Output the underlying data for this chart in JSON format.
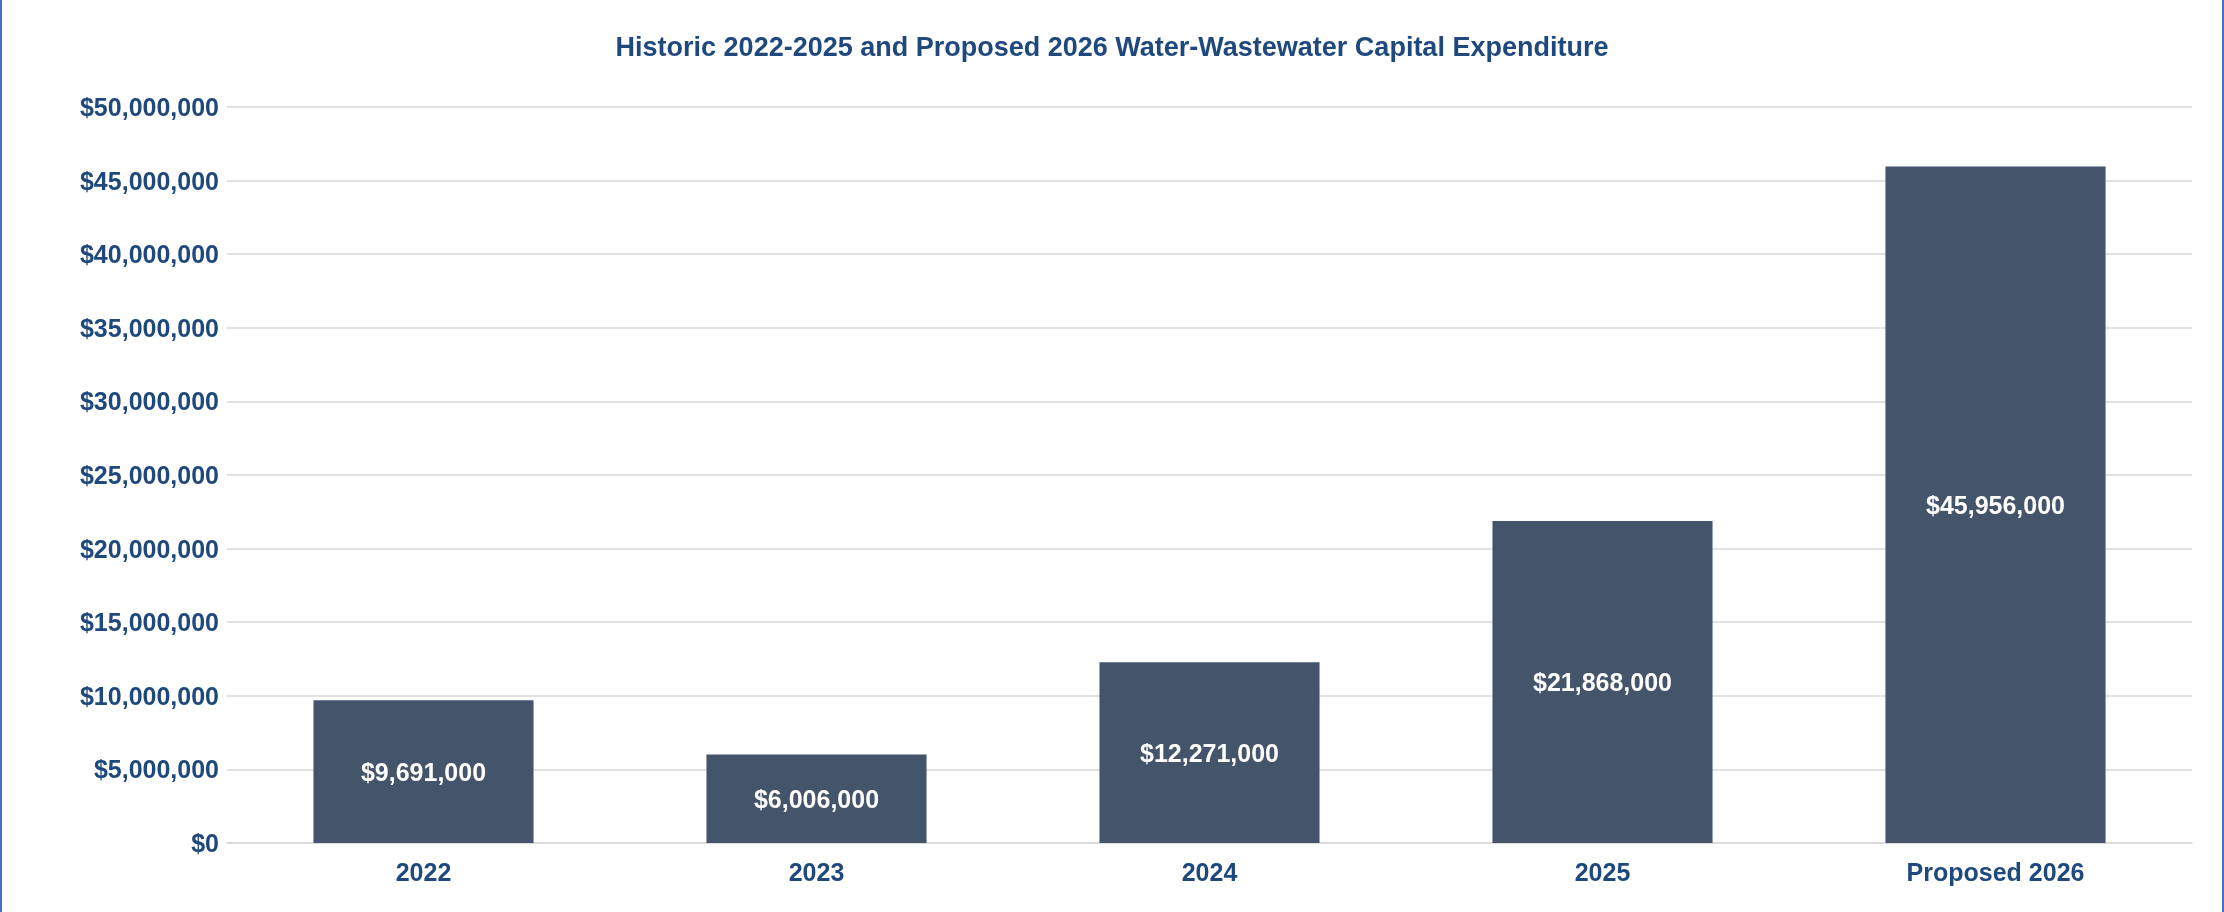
{
  "chart_data": {
    "type": "bar",
    "title": "Historic 2022-2025 and Proposed 2026 Water-Wastewater Capital Expenditure",
    "categories": [
      "2022",
      "2023",
      "2024",
      "2025",
      "Proposed 2026"
    ],
    "values": [
      9691000,
      6006000,
      12271000,
      21868000,
      45956000
    ],
    "value_labels": [
      "$9,691,000",
      "$6,006,000",
      "$12,271,000",
      "$21,868,000",
      "$45,956,000"
    ],
    "color": "#44546a",
    "ylim": [
      0,
      50000000
    ],
    "yticks": [
      {
        "value": 0,
        "label": "$0"
      },
      {
        "value": 5000000,
        "label": "$5,000,000"
      },
      {
        "value": 10000000,
        "label": "$10,000,000"
      },
      {
        "value": 15000000,
        "label": "$15,000,000"
      },
      {
        "value": 20000000,
        "label": "$20,000,000"
      },
      {
        "value": 25000000,
        "label": "$25,000,000"
      },
      {
        "value": 30000000,
        "label": "$30,000,000"
      },
      {
        "value": 35000000,
        "label": "$35,000,000"
      },
      {
        "value": 40000000,
        "label": "$40,000,000"
      },
      {
        "value": 45000000,
        "label": "$45,000,000"
      },
      {
        "value": 50000000,
        "label": "$50,000,000"
      }
    ],
    "grid": true
  }
}
